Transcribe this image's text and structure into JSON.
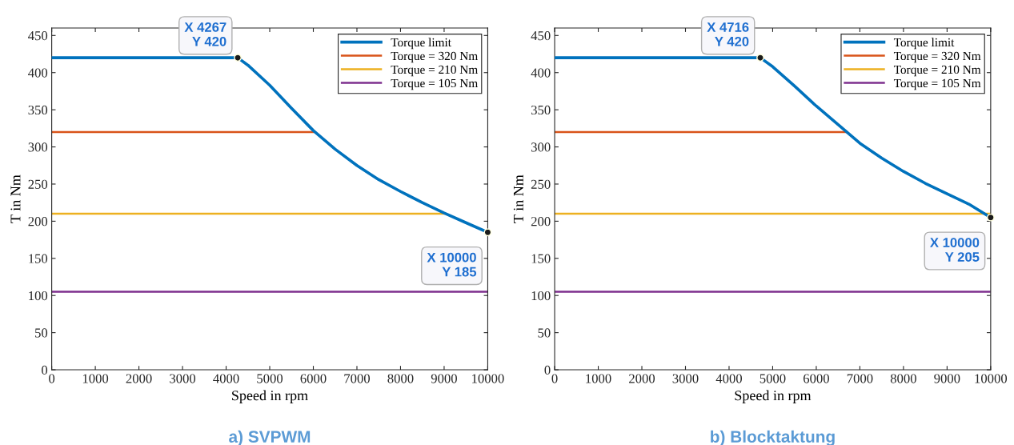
{
  "chart_data": [
    {
      "type": "line",
      "title": "a) SVPWM",
      "xlabel": "Speed in rpm",
      "ylabel": "T in Nm",
      "series": [
        {
          "name": "Torque limit",
          "color": "#0072bd",
          "x": [
            0,
            4267,
            4500,
            5000,
            5500,
            6000,
            6500,
            7000,
            7500,
            8000,
            8500,
            9000,
            9500,
            10000
          ],
          "values": [
            420,
            420,
            410,
            383,
            352,
            322,
            297,
            275,
            256,
            240,
            225,
            211,
            198,
            185
          ]
        },
        {
          "name": "Torque = 320 Nm",
          "color": "#d95319",
          "x": [
            0,
            6000
          ],
          "values": [
            320,
            320
          ]
        },
        {
          "name": "Torque = 210 Nm",
          "color": "#edb120",
          "x": [
            0,
            9000
          ],
          "values": [
            210,
            210
          ]
        },
        {
          "name": "Torque = 105 Nm",
          "color": "#7e2f8e",
          "x": [
            0,
            10000
          ],
          "values": [
            105,
            105
          ]
        }
      ],
      "annotations": [
        {
          "text": "X 4267\nY 420",
          "x": 4267,
          "y": 420
        },
        {
          "text": "X 10000\nY 185",
          "x": 10000,
          "y": 185
        }
      ],
      "xlim": [
        0,
        10000
      ],
      "xticks": [
        0,
        1000,
        2000,
        3000,
        4000,
        5000,
        6000,
        7000,
        8000,
        9000,
        10000
      ],
      "ylim": [
        0,
        460
      ],
      "yticks": [
        0,
        50,
        100,
        150,
        200,
        250,
        300,
        350,
        400,
        450
      ],
      "grid": false,
      "legend": "top right"
    },
    {
      "type": "line",
      "title": "b) Blocktaktung",
      "xlabel": "Speed in rpm",
      "ylabel": "T in Nm",
      "series": [
        {
          "name": "Torque limit",
          "color": "#0072bd",
          "x": [
            0,
            4716,
            5000,
            5500,
            6000,
            6500,
            7000,
            7500,
            8000,
            8500,
            9000,
            9500,
            10000
          ],
          "values": [
            420,
            420,
            408,
            382,
            355,
            330,
            305,
            285,
            267,
            251,
            237,
            223,
            205
          ]
        },
        {
          "name": "Torque = 320 Nm",
          "color": "#d95319",
          "x": [
            0,
            6700
          ],
          "values": [
            320,
            320
          ]
        },
        {
          "name": "Torque = 210 Nm",
          "color": "#edb120",
          "x": [
            0,
            10000
          ],
          "values": [
            210,
            210
          ]
        },
        {
          "name": "Torque = 105 Nm",
          "color": "#7e2f8e",
          "x": [
            0,
            10000
          ],
          "values": [
            105,
            105
          ]
        }
      ],
      "annotations": [
        {
          "text": "X 4716\nY 420",
          "x": 4716,
          "y": 420
        },
        {
          "text": "X 10000\nY 205",
          "x": 10000,
          "y": 205
        }
      ],
      "xlim": [
        0,
        10000
      ],
      "xticks": [
        0,
        1000,
        2000,
        3000,
        4000,
        5000,
        6000,
        7000,
        8000,
        9000,
        10000
      ],
      "ylim": [
        0,
        460
      ],
      "yticks": [
        0,
        50,
        100,
        150,
        200,
        250,
        300,
        350,
        400,
        450
      ],
      "grid": false,
      "legend": "top right"
    }
  ]
}
